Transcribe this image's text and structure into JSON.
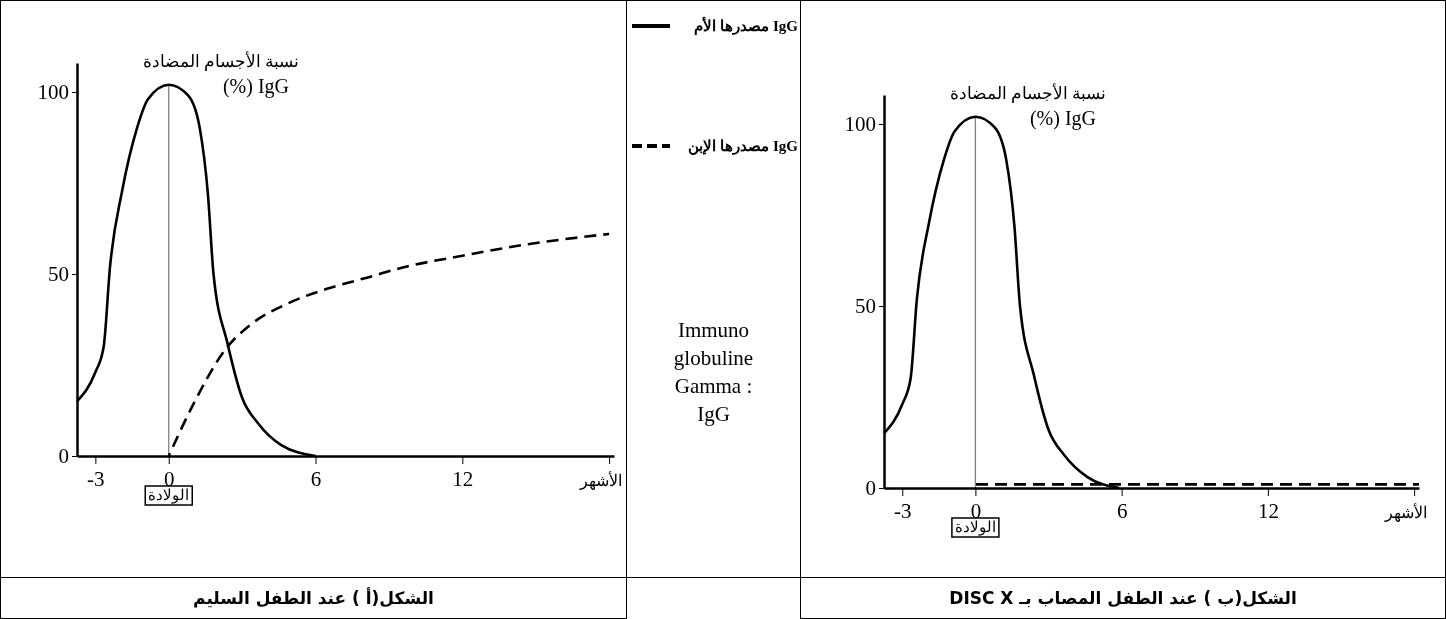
{
  "chart_data": [
    {
      "type": "line",
      "title": "الشكل(أ ) عند الطفل السليم",
      "xlabel": "الأشهر",
      "ylabel": "نسبة الأجسام المضادة\nIgG (%)",
      "xlim": [
        -3.75,
        18.2
      ],
      "ylim": [
        0,
        108
      ],
      "xticks": [
        -3,
        0,
        6,
        12,
        {
          "value": 18,
          "label": null
        }
      ],
      "yticks": [
        0,
        50,
        100
      ],
      "grid": false,
      "legend": "right",
      "ref_lines": [
        {
          "axis": "x",
          "value": 0,
          "label": "الولادة",
          "color": "#808080"
        }
      ],
      "series": [
        {
          "name": "IgG مصدرها الأم",
          "color": "#000000",
          "line_style": "solid",
          "x": [
            -3.75,
            -3,
            -2.66,
            -2.4,
            -1.9,
            -1.3,
            -0.85,
            0,
            0.8,
            1.27,
            1.6,
            1.83,
            2.4,
            3.0,
            3.65,
            4.6,
            6
          ],
          "values": [
            15,
            23,
            30,
            52,
            73,
            90,
            98,
            102,
            99,
            90,
            72,
            50,
            31,
            16,
            9,
            3,
            0
          ]
        },
        {
          "name": "IgG مصدرها الإبن",
          "color": "#000000",
          "line_style": "dashed",
          "x": [
            0,
            0.95,
            2.4,
            3.33,
            4.9,
            6.5,
            8.1,
            9.7,
            12,
            14.5,
            18
          ],
          "values": [
            0,
            13.5,
            30,
            36,
            42,
            46,
            49,
            52,
            55,
            58,
            61
          ]
        }
      ]
    },
    {
      "type": "other",
      "annotations": [
        "Immuno globuline Gamma : IgG"
      ]
    },
    {
      "type": "line",
      "title": "الشكل(ب ) عند الطفل المصاب بـ DISC X",
      "xlabel": "الأشهر",
      "ylabel": "نسبة الأجسام المضادة\nIgG (%)",
      "xlim": [
        -3.75,
        18.2
      ],
      "ylim": [
        0,
        108
      ],
      "xticks": [
        -3,
        0,
        6,
        12,
        {
          "value": 18,
          "label": null
        }
      ],
      "yticks": [
        0,
        50,
        100
      ],
      "grid": false,
      "ref_lines": [
        {
          "axis": "x",
          "value": 0,
          "label": "الولادة",
          "color": "#808080"
        }
      ],
      "series": [
        {
          "color": "#000000",
          "line_style": "solid",
          "x": [
            -3.75,
            -3,
            -2.66,
            -2.4,
            -1.9,
            -1.3,
            -0.85,
            0,
            0.8,
            1.27,
            1.6,
            1.83,
            2.4,
            3.0,
            3.65,
            4.6,
            5.9
          ],
          "values": [
            15,
            23,
            30,
            52,
            73,
            90,
            98,
            102,
            99,
            90,
            72,
            50,
            31,
            16,
            9,
            3,
            0
          ]
        },
        {
          "color": "#000000",
          "line_style": "dashed",
          "x": [
            0,
            18.2
          ],
          "values": [
            1,
            1
          ]
        }
      ]
    }
  ]
}
